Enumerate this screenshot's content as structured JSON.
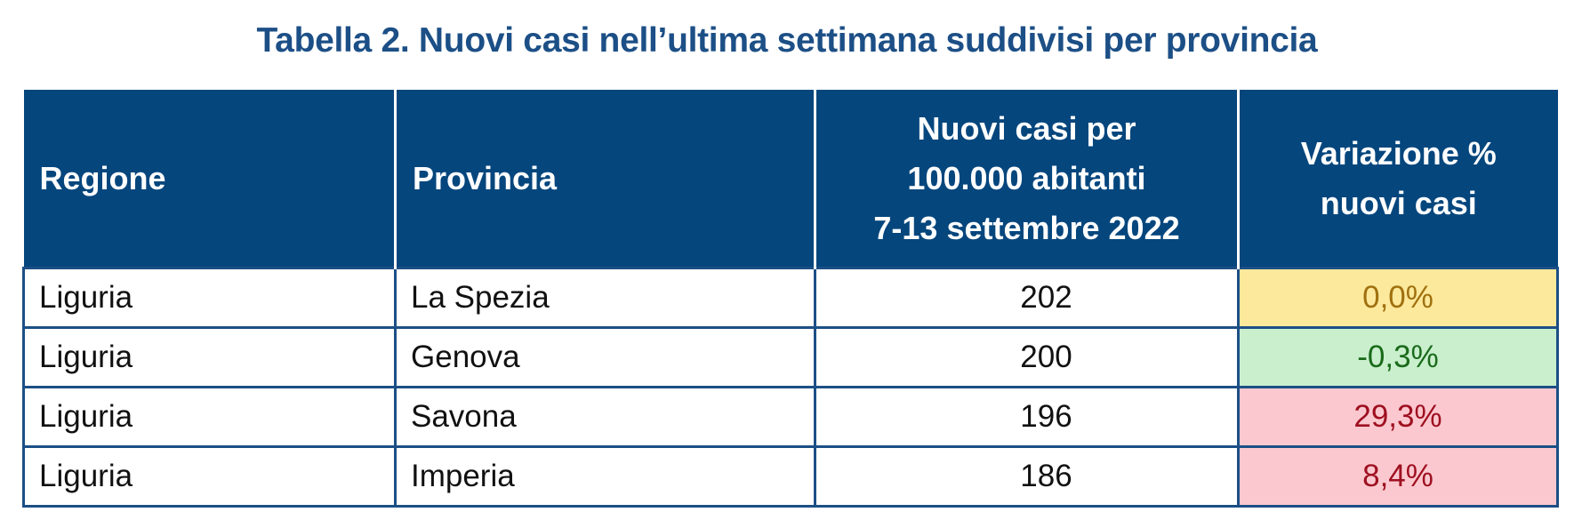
{
  "title": "Tabella 2. Nuovi casi nell’ultima settimana suddivisi per provincia",
  "table": {
    "header": [
      "Regione",
      "Provincia",
      [
        "Nuovi casi per",
        "100.000 abitanti",
        "7-13 settembre 2022"
      ],
      [
        "Variazione %",
        "nuovi casi"
      ]
    ],
    "rows": [
      [
        "Liguria",
        "La Spezia",
        "202",
        "0,0%"
      ],
      [
        "Liguria",
        "Genova",
        "200",
        "-0,3%"
      ],
      [
        "Liguria",
        "Savona",
        "196",
        "29,3%"
      ],
      [
        "Liguria",
        "Imperia",
        "186",
        "8,4%"
      ]
    ]
  }
}
